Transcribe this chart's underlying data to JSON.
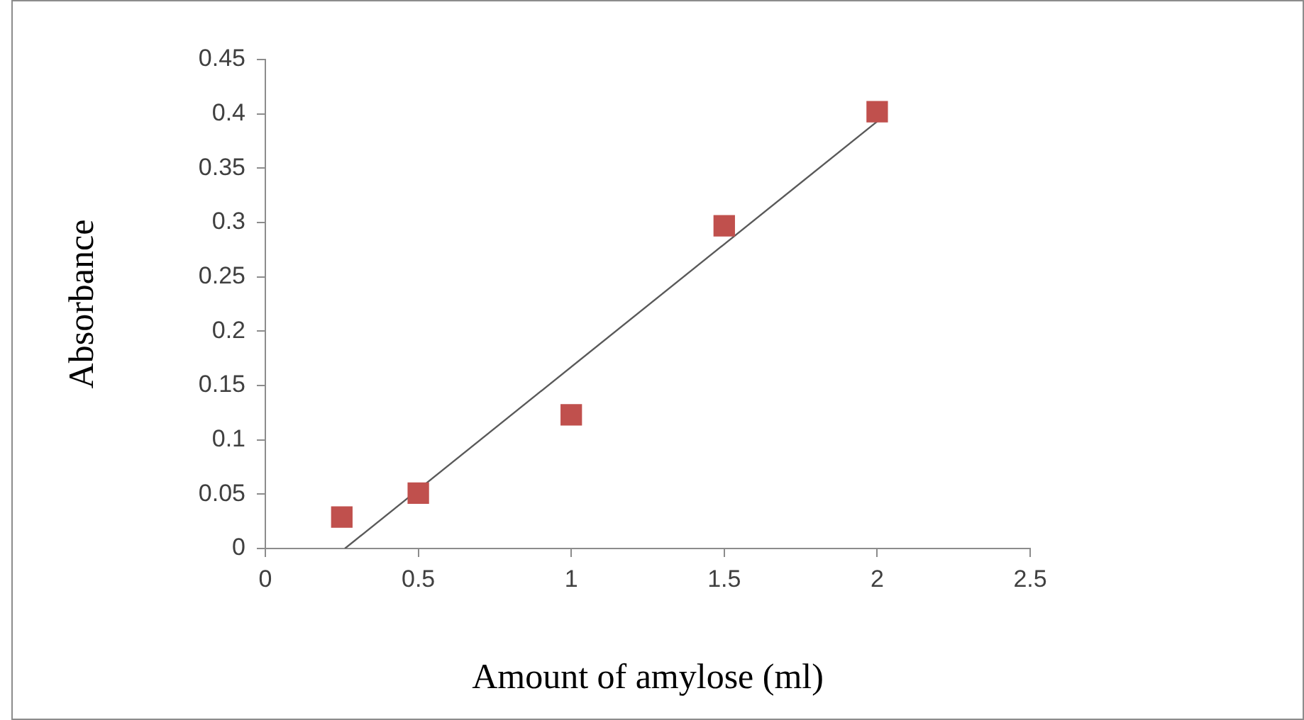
{
  "chart_data": {
    "type": "scatter",
    "xlabel": "Amount of amylose (ml)",
    "ylabel": "Absorbance",
    "xlim": [
      0,
      2.5
    ],
    "xticks": [
      0,
      0.5,
      1,
      1.5,
      2,
      2.5
    ],
    "ylim": [
      0,
      0.45
    ],
    "yticks": [
      0,
      0.05,
      0.1,
      0.15,
      0.2,
      0.25,
      0.3,
      0.35,
      0.4,
      0.45
    ],
    "grid": false,
    "legend": false,
    "marker": "square",
    "series": [
      {
        "color": "#c0504d",
        "x": [
          0.25,
          0.5,
          1,
          1.5,
          2
        ],
        "values": [
          0.029,
          0.051,
          0.123,
          0.297,
          0.402
        ]
      },
      {
        "type": "line",
        "marker": "none",
        "color": "#595959",
        "x": [
          0.26,
          2
        ],
        "values": [
          0,
          0.393
        ]
      }
    ]
  }
}
